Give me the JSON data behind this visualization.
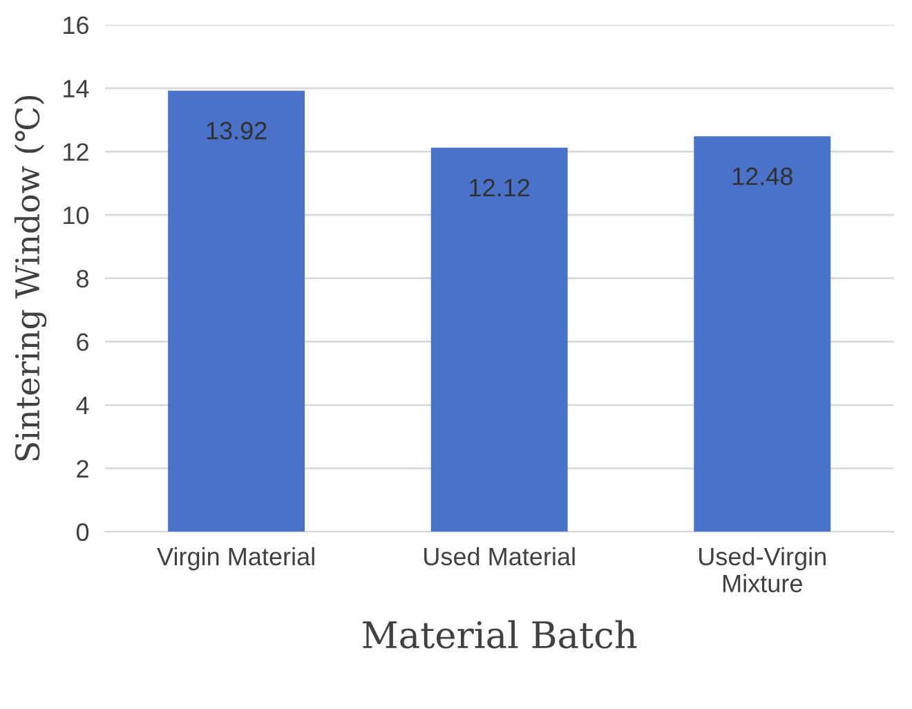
{
  "chart_data": {
    "type": "bar",
    "xlabel": "Material Batch",
    "ylabel": "Sintering Window (℃)",
    "categories": [
      "Virgin Material",
      "Used Material",
      "Used-Virgin\nMixture"
    ],
    "values": [
      13.92,
      12.12,
      12.48
    ],
    "color": "#4a72c8",
    "ylim": [
      0,
      16
    ],
    "yticks": [
      0,
      2,
      4,
      6,
      8,
      10,
      12,
      14,
      16
    ],
    "grid": "y",
    "data_labels": true
  }
}
